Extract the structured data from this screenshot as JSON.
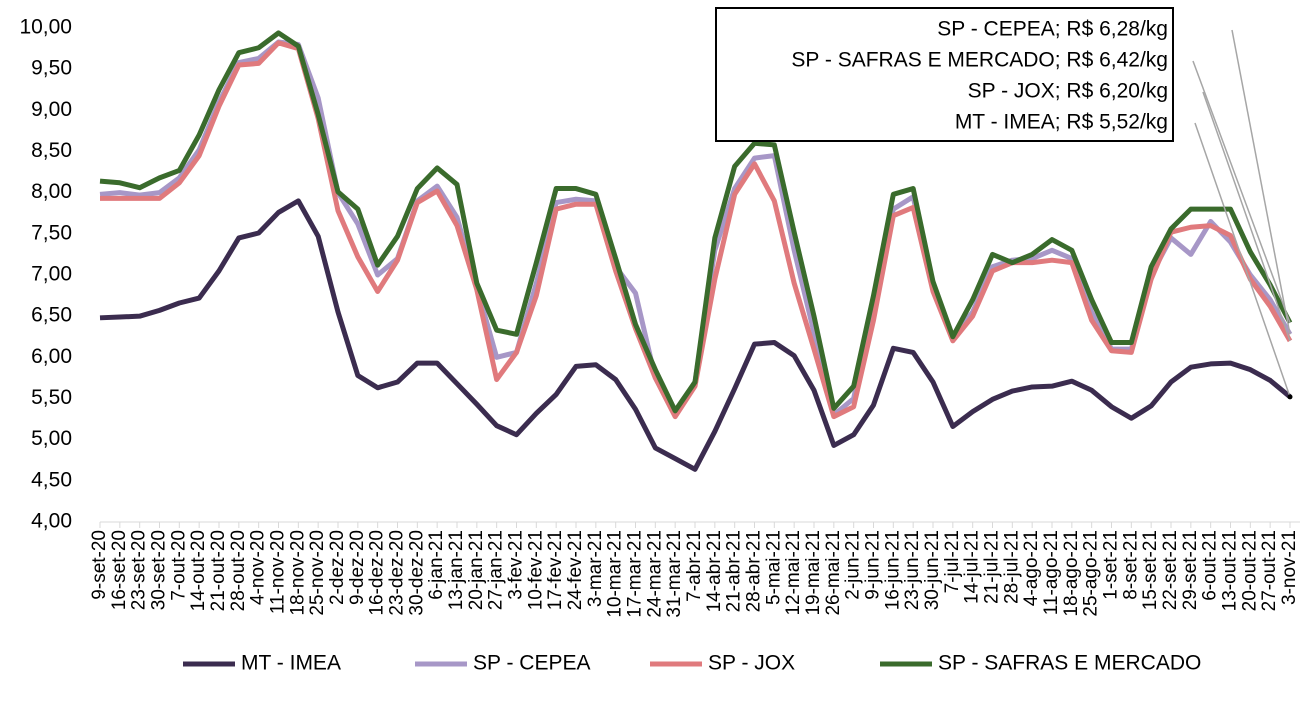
{
  "chart_data": {
    "type": "line",
    "categories": [
      "9-set-20",
      "16-set-20",
      "23-set-20",
      "30-set-20",
      "7-out-20",
      "14-out-20",
      "21-out-20",
      "28-out-20",
      "4-nov-20",
      "11-nov-20",
      "18-nov-20",
      "25-nov-20",
      "2-dez-20",
      "9-dez-20",
      "16-dez-20",
      "23-dez-20",
      "30-dez-20",
      "6-jan-21",
      "13-jan-21",
      "20-jan-21",
      "27-jan-21",
      "3-fev-21",
      "10-fev-21",
      "17-fev-21",
      "24-fev-21",
      "3-mar-21",
      "10-mar-21",
      "17-mar-21",
      "24-mar-21",
      "31-mar-21",
      "7-abr-21",
      "14-abr-21",
      "21-abr-21",
      "28-abr-21",
      "5-mai-21",
      "12-mai-21",
      "19-mai-21",
      "26-mai-21",
      "2-jun-21",
      "9-jun-21",
      "16-jun-21",
      "23-jun-21",
      "30-jun-21",
      "7-jul-21",
      "14-jul-21",
      "21-jul-21",
      "28-jul-21",
      "4-ago-21",
      "11-ago-21",
      "18-ago-21",
      "25-ago-21",
      "1-set-21",
      "8-set-21",
      "15-set-21",
      "22-set-21",
      "29-set-21",
      "6-out-21",
      "13-out-21",
      "20-out-21",
      "27-out-21",
      "3-nov-21"
    ],
    "series": [
      {
        "name": "MT - IMEA",
        "color": "#3b2c4f",
        "values": [
          6.48,
          6.49,
          6.5,
          6.57,
          6.66,
          6.72,
          7.05,
          7.45,
          7.51,
          7.76,
          7.9,
          7.47,
          6.55,
          5.78,
          5.63,
          5.7,
          5.93,
          5.93,
          5.68,
          5.43,
          5.17,
          5.06,
          5.32,
          5.55,
          5.89,
          5.91,
          5.73,
          5.37,
          4.9,
          4.77,
          4.64,
          5.1,
          5.62,
          6.16,
          6.18,
          6.02,
          5.6,
          4.93,
          5.06,
          5.42,
          6.11,
          6.06,
          5.7,
          5.16,
          5.34,
          5.49,
          5.59,
          5.64,
          5.65,
          5.71,
          5.6,
          5.4,
          5.26,
          5.41,
          5.7,
          5.88,
          5.92,
          5.93,
          5.85,
          5.72,
          5.52
        ]
      },
      {
        "name": "SP - CEPEA",
        "color": "#a797c7",
        "values": [
          7.98,
          8.0,
          7.97,
          8.0,
          8.18,
          8.52,
          9.1,
          9.58,
          9.63,
          9.83,
          9.8,
          9.15,
          8.0,
          7.62,
          7.0,
          7.2,
          7.9,
          8.08,
          7.7,
          6.85,
          6.0,
          6.06,
          6.9,
          7.88,
          7.92,
          7.9,
          7.1,
          6.78,
          5.75,
          5.32,
          5.7,
          7.3,
          8.05,
          8.42,
          8.45,
          7.3,
          6.3,
          5.3,
          5.5,
          6.7,
          7.8,
          7.95,
          6.85,
          6.25,
          6.55,
          7.1,
          7.18,
          7.2,
          7.3,
          7.2,
          6.55,
          6.1,
          6.1,
          7.0,
          7.45,
          7.25,
          7.65,
          7.4,
          7.0,
          6.7,
          6.28
        ]
      },
      {
        "name": "SP - JOX",
        "color": "#e07a7d",
        "values": [
          7.93,
          7.93,
          7.93,
          7.93,
          8.12,
          8.45,
          9.05,
          9.55,
          9.57,
          9.82,
          9.75,
          8.9,
          7.78,
          7.22,
          6.8,
          7.18,
          7.88,
          8.02,
          7.6,
          6.82,
          5.73,
          6.06,
          6.75,
          7.8,
          7.86,
          7.86,
          7.05,
          6.35,
          5.75,
          5.28,
          5.65,
          6.95,
          7.98,
          8.35,
          7.9,
          6.9,
          6.1,
          5.28,
          5.4,
          6.45,
          7.72,
          7.82,
          6.8,
          6.2,
          6.5,
          7.05,
          7.15,
          7.15,
          7.18,
          7.15,
          6.45,
          6.08,
          6.06,
          6.95,
          7.52,
          7.58,
          7.6,
          7.48,
          6.95,
          6.62,
          6.2
        ]
      },
      {
        "name": "SP - SAFRAS E MERCADO",
        "color": "#3a6b2c",
        "values": [
          8.14,
          8.12,
          8.06,
          8.18,
          8.27,
          8.7,
          9.25,
          9.7,
          9.76,
          9.94,
          9.78,
          8.95,
          8.01,
          7.8,
          7.12,
          7.47,
          8.05,
          8.3,
          8.1,
          6.9,
          6.33,
          6.28,
          7.15,
          8.05,
          8.05,
          7.98,
          7.2,
          6.4,
          5.85,
          5.35,
          5.7,
          7.45,
          8.32,
          8.6,
          8.58,
          7.52,
          6.5,
          5.38,
          5.65,
          6.75,
          7.98,
          8.05,
          6.92,
          6.25,
          6.7,
          7.25,
          7.15,
          7.25,
          7.43,
          7.3,
          6.7,
          6.18,
          6.18,
          7.1,
          7.56,
          7.8,
          7.8,
          7.8,
          7.28,
          6.88,
          6.42
        ]
      }
    ],
    "annotations": [
      "SP - CEPEA; R$ 6,28/kg",
      "SP - SAFRAS E MERCADO; R$ 6,42/kg",
      "SP - JOX; R$ 6,20/kg",
      "MT - IMEA; R$ 5,52/kg"
    ],
    "ylim": [
      4,
      10
    ],
    "yticks": [
      {
        "value": 4,
        "label": "4,00"
      },
      {
        "value": 4.5,
        "label": "4,50"
      },
      {
        "value": 5,
        "label": "5,00"
      },
      {
        "value": 5.5,
        "label": "5,50"
      },
      {
        "value": 6,
        "label": "6,00"
      },
      {
        "value": 6.5,
        "label": "6,50"
      },
      {
        "value": 7,
        "label": "7,00"
      },
      {
        "value": 7.5,
        "label": "7,50"
      },
      {
        "value": 8,
        "label": "8,00"
      },
      {
        "value": 8.5,
        "label": "8,50"
      },
      {
        "value": 9,
        "label": "9,00"
      },
      {
        "value": 9.5,
        "label": "9,50"
      },
      {
        "value": 10,
        "label": "10,00"
      }
    ],
    "legend": "bottom"
  }
}
